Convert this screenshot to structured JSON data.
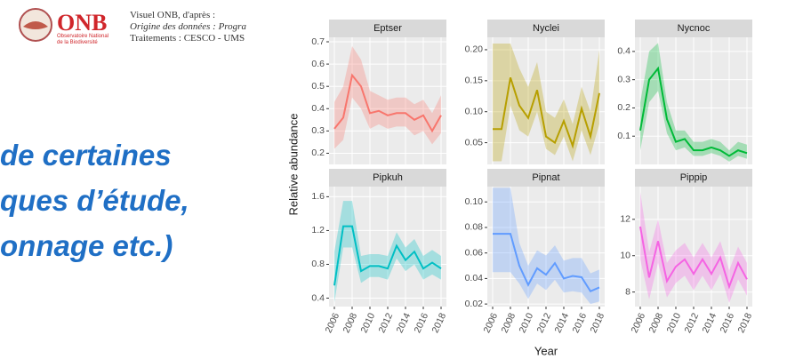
{
  "logo": {
    "acronym": "ONB",
    "org_line1": "Observatoire National",
    "org_line2": "de la Biodiversité",
    "credit": "Visuel ONB, d'après :",
    "source": "Origine des données : Progra",
    "processing": "Traitements : CESCO - UMS"
  },
  "slide_text": [
    "de certaines",
    "ques d’étude,",
    "onnage etc.)"
  ],
  "chart_data": [
    {
      "type": "line",
      "title": "Eptser",
      "ylabel": "Relative abundance",
      "color": "#F8766D",
      "x": [
        2006,
        2007,
        2008,
        2009,
        2010,
        2011,
        2012,
        2013,
        2014,
        2015,
        2016,
        2017,
        2018
      ],
      "values": [
        0.31,
        0.36,
        0.55,
        0.5,
        0.38,
        0.39,
        0.37,
        0.38,
        0.38,
        0.35,
        0.37,
        0.3,
        0.37
      ],
      "upper": [
        0.43,
        0.5,
        0.68,
        0.62,
        0.48,
        0.46,
        0.44,
        0.45,
        0.45,
        0.42,
        0.44,
        0.38,
        0.46
      ],
      "lower": [
        0.22,
        0.26,
        0.45,
        0.4,
        0.31,
        0.33,
        0.31,
        0.32,
        0.32,
        0.28,
        0.3,
        0.24,
        0.29
      ],
      "xlim": [
        2005.4,
        2018.6
      ],
      "xticks": [
        2006,
        2008,
        2010,
        2012,
        2014,
        2016,
        2018
      ],
      "ylim": [
        0.15,
        0.72
      ],
      "yticks": [
        0.2,
        0.3,
        0.4,
        0.5,
        0.6,
        0.7
      ]
    },
    {
      "type": "line",
      "title": "Nyclei",
      "color": "#B79F00",
      "x": [
        2006,
        2007,
        2008,
        2009,
        2010,
        2011,
        2012,
        2013,
        2014,
        2015,
        2016,
        2017,
        2018
      ],
      "values": [
        0.072,
        0.072,
        0.155,
        0.11,
        0.09,
        0.135,
        0.06,
        0.05,
        0.085,
        0.045,
        0.105,
        0.06,
        0.13
      ],
      "upper": [
        0.21,
        0.21,
        0.21,
        0.17,
        0.14,
        0.18,
        0.1,
        0.09,
        0.12,
        0.08,
        0.14,
        0.1,
        0.2
      ],
      "lower": [
        0.02,
        0.02,
        0.11,
        0.07,
        0.06,
        0.1,
        0.04,
        0.03,
        0.06,
        0.02,
        0.07,
        0.03,
        0.08
      ],
      "xlim": [
        2005.4,
        2018.6
      ],
      "xticks": [
        2006,
        2008,
        2010,
        2012,
        2014,
        2016,
        2018
      ],
      "ylim": [
        0.015,
        0.22
      ],
      "yticks": [
        0.05,
        {
          "value": 0.1,
          "label": "0.10"
        },
        0.15,
        {
          "value": 0.2,
          "label": "0.20"
        }
      ]
    },
    {
      "type": "line",
      "title": "Nycnoc",
      "color": "#00BA38",
      "x": [
        2006,
        2007,
        2008,
        2009,
        2010,
        2011,
        2012,
        2013,
        2014,
        2015,
        2016,
        2017,
        2018
      ],
      "values": [
        0.12,
        0.3,
        0.34,
        0.16,
        0.08,
        0.09,
        0.05,
        0.05,
        0.06,
        0.05,
        0.03,
        0.05,
        0.04
      ],
      "upper": [
        0.22,
        0.4,
        0.43,
        0.22,
        0.12,
        0.12,
        0.08,
        0.08,
        0.09,
        0.08,
        0.05,
        0.08,
        0.07
      ],
      "lower": [
        0.05,
        0.22,
        0.26,
        0.11,
        0.05,
        0.06,
        0.03,
        0.03,
        0.04,
        0.03,
        0.01,
        0.03,
        0.02
      ],
      "xlim": [
        2005.4,
        2018.6
      ],
      "xticks": [
        2006,
        2008,
        2010,
        2012,
        2014,
        2016,
        2018
      ],
      "ylim": [
        0,
        0.45
      ],
      "yticks": [
        0.1,
        0.2,
        0.3,
        0.4
      ]
    },
    {
      "type": "line",
      "title": "Pipkuh",
      "color": "#00BFC4",
      "x": [
        2006,
        2007,
        2008,
        2009,
        2010,
        2011,
        2012,
        2013,
        2014,
        2015,
        2016,
        2017,
        2018
      ],
      "values": [
        0.55,
        1.25,
        1.25,
        0.72,
        0.78,
        0.78,
        0.75,
        1.02,
        0.85,
        0.95,
        0.75,
        0.82,
        0.75
      ],
      "upper": [
        0.95,
        1.55,
        1.55,
        0.9,
        0.92,
        0.92,
        0.9,
        1.18,
        1.0,
        1.1,
        0.9,
        0.97,
        0.9
      ],
      "lower": [
        0.35,
        1.0,
        1.0,
        0.58,
        0.65,
        0.65,
        0.62,
        0.87,
        0.72,
        0.8,
        0.62,
        0.68,
        0.62
      ],
      "xlim": [
        2005.4,
        2018.6
      ],
      "xticks": [
        2006,
        2008,
        2010,
        2012,
        2014,
        2016,
        2018
      ],
      "ylim": [
        0.3,
        1.72
      ],
      "yticks": [
        0.4,
        0.8,
        1.2,
        1.6
      ]
    },
    {
      "type": "line",
      "title": "Pipnat",
      "xlabel": "Year",
      "color": "#619CFF",
      "x": [
        2006,
        2007,
        2008,
        2009,
        2010,
        2011,
        2012,
        2013,
        2014,
        2015,
        2016,
        2017,
        2018
      ],
      "values": [
        0.075,
        0.075,
        0.075,
        0.05,
        0.035,
        0.048,
        0.043,
        0.052,
        0.04,
        0.042,
        0.041,
        0.03,
        0.033
      ],
      "upper": [
        0.111,
        0.111,
        0.111,
        0.068,
        0.05,
        0.062,
        0.058,
        0.066,
        0.054,
        0.056,
        0.056,
        0.044,
        0.047
      ],
      "lower": [
        0.045,
        0.045,
        0.045,
        0.036,
        0.024,
        0.036,
        0.031,
        0.039,
        0.029,
        0.03,
        0.029,
        0.02,
        0.022
      ],
      "xlim": [
        2005.4,
        2018.6
      ],
      "xticks": [
        2006,
        2008,
        2010,
        2012,
        2014,
        2016,
        2018
      ],
      "ylim": [
        0.018,
        0.112
      ],
      "yticks": [
        0.02,
        0.04,
        0.06,
        0.08,
        {
          "value": 0.1,
          "label": "0.10"
        }
      ]
    },
    {
      "type": "line",
      "title": "Pippip",
      "color": "#F564E3",
      "x": [
        2006,
        2007,
        2008,
        2009,
        2010,
        2011,
        2012,
        2013,
        2014,
        2015,
        2016,
        2017,
        2018
      ],
      "values": [
        11.6,
        8.8,
        10.8,
        8.6,
        9.4,
        9.8,
        9.0,
        9.8,
        9.0,
        9.9,
        8.3,
        9.6,
        8.7
      ],
      "upper": [
        13.5,
        10.2,
        12.0,
        9.6,
        10.3,
        10.7,
        9.9,
        10.7,
        9.9,
        10.8,
        9.2,
        10.5,
        9.6
      ],
      "lower": [
        9.8,
        7.6,
        9.6,
        7.7,
        8.5,
        8.9,
        8.1,
        8.9,
        8.1,
        9.0,
        7.4,
        8.7,
        7.8
      ],
      "xlim": [
        2005.4,
        2018.6
      ],
      "xticks": [
        2006,
        2008,
        2010,
        2012,
        2014,
        2016,
        2018
      ],
      "ylim": [
        7.2,
        13.8
      ],
      "yticks": [
        8,
        10,
        12
      ]
    }
  ]
}
